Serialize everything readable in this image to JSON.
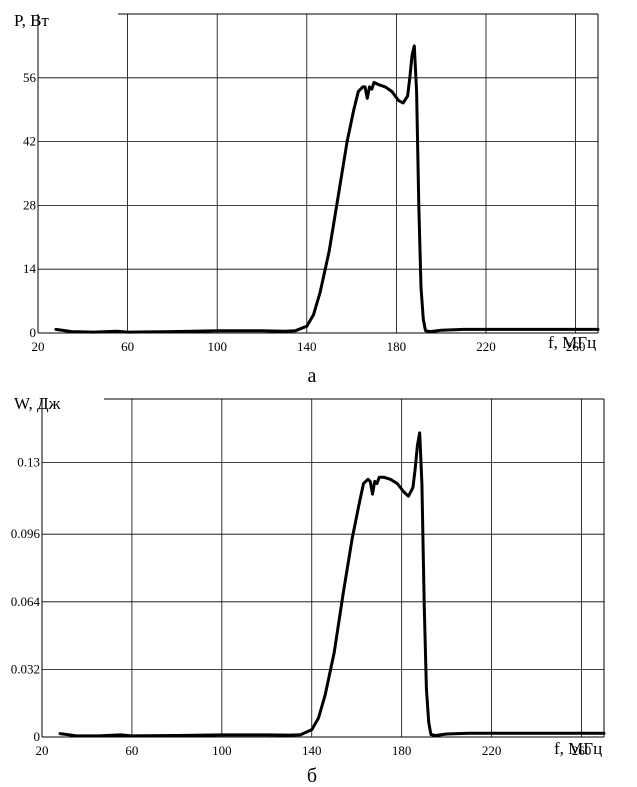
{
  "chart_data": [
    {
      "type": "line",
      "ylabel": "P, Вт",
      "xlabel": "f, МГц",
      "caption": "а",
      "xlim": [
        20,
        270
      ],
      "ylim": [
        0,
        70
      ],
      "x_ticks": [
        "20",
        "60",
        "100",
        "140",
        "180",
        "220",
        "260"
      ],
      "y_ticks": [
        "0",
        "14",
        "28",
        "42",
        "56"
      ],
      "grid": true,
      "series": [
        {
          "x": [
            28,
            35,
            45,
            55,
            60,
            80,
            100,
            120,
            130,
            135,
            140,
            143,
            146,
            150,
            154,
            158,
            161,
            163,
            165,
            166,
            167,
            168,
            169,
            170,
            172,
            175,
            178,
            181,
            183,
            185,
            186,
            187,
            188,
            189,
            190,
            191,
            192,
            193,
            195,
            200,
            210,
            230,
            250,
            270
          ],
          "y": [
            0.8,
            0.3,
            0.2,
            0.4,
            0.2,
            0.3,
            0.5,
            0.5,
            0.4,
            0.5,
            1.5,
            4,
            9,
            18,
            30,
            42,
            49,
            53,
            54,
            54,
            51.5,
            54,
            53.5,
            55,
            54.5,
            54,
            53,
            51,
            50.5,
            52,
            56,
            61,
            63,
            53,
            28,
            10,
            3,
            0.5,
            0.3,
            0.6,
            0.8,
            0.8,
            0.8,
            0.8
          ]
        }
      ]
    },
    {
      "type": "line",
      "ylabel": "W, Дж",
      "xlabel": "f, МГц",
      "caption": "б",
      "xlim": [
        20,
        270
      ],
      "ylim": [
        0,
        0.16
      ],
      "x_ticks": [
        "20",
        "60",
        "100",
        "140",
        "180",
        "220",
        "260"
      ],
      "y_ticks": [
        "0",
        "0.032",
        "0.064",
        "0.096",
        "0.13"
      ],
      "grid": true,
      "series": [
        {
          "x": [
            28,
            35,
            45,
            55,
            60,
            80,
            100,
            120,
            130,
            135,
            140,
            143,
            146,
            150,
            154,
            158,
            161,
            163,
            165,
            166,
            167,
            168,
            169,
            170,
            172,
            175,
            178,
            181,
            183,
            185,
            186,
            187,
            188,
            189,
            190,
            191,
            192,
            193,
            195,
            200,
            210,
            230,
            250,
            270
          ],
          "y": [
            0.0016,
            0.0006,
            0.0005,
            0.001,
            0.0005,
            0.0007,
            0.001,
            0.001,
            0.0009,
            0.0011,
            0.0035,
            0.009,
            0.02,
            0.04,
            0.068,
            0.094,
            0.11,
            0.12,
            0.122,
            0.121,
            0.115,
            0.121,
            0.12,
            0.123,
            0.123,
            0.122,
            0.12,
            0.116,
            0.114,
            0.118,
            0.127,
            0.138,
            0.144,
            0.12,
            0.063,
            0.023,
            0.007,
            0.0012,
            0.0007,
            0.0014,
            0.0018,
            0.0018,
            0.0018,
            0.0018
          ]
        }
      ]
    }
  ]
}
